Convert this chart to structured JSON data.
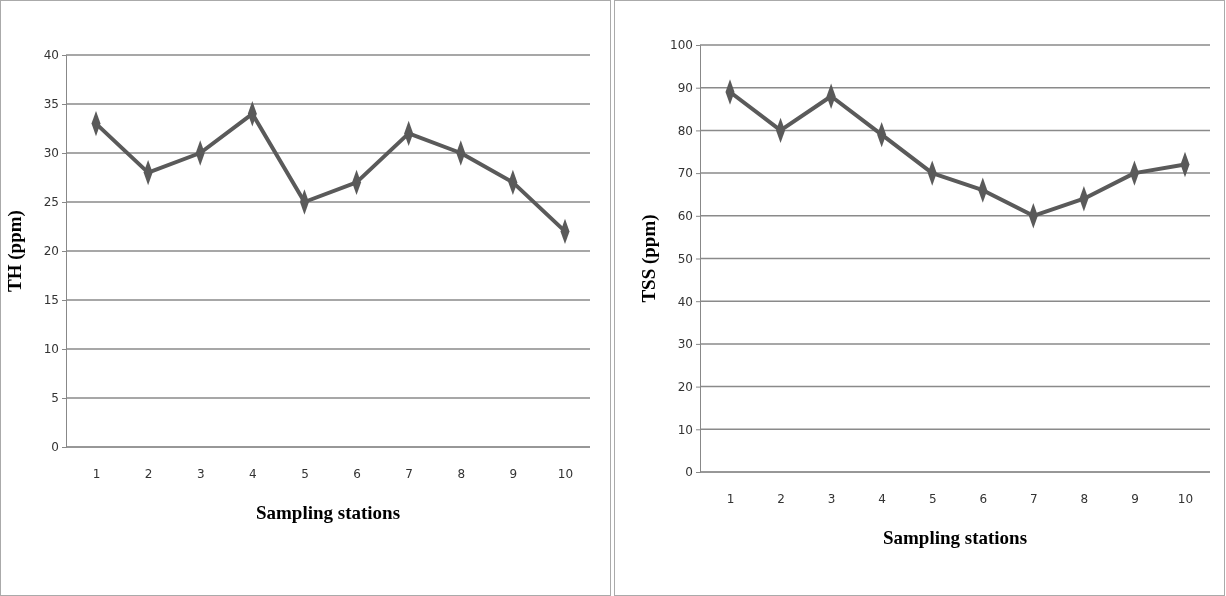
{
  "chart_data": [
    {
      "type": "line",
      "xlabel": "Sampling stations",
      "ylabel": "TH (ppm)",
      "categories": [
        "1",
        "2",
        "3",
        "4",
        "5",
        "6",
        "7",
        "8",
        "9",
        "10"
      ],
      "series": [
        {
          "color": "#5a5a5a",
          "values": [
            33,
            28,
            30,
            34,
            25,
            27,
            32,
            30,
            27,
            22
          ]
        }
      ],
      "ylim": [
        0,
        40
      ],
      "yticks": [
        0,
        5,
        10,
        15,
        20,
        25,
        30,
        35,
        40
      ],
      "grid": "y",
      "marker": "diamond",
      "line_style": "solid"
    },
    {
      "type": "line",
      "xlabel": "Sampling stations",
      "ylabel": "TSS (ppm)",
      "categories": [
        "1",
        "2",
        "3",
        "4",
        "5",
        "6",
        "7",
        "8",
        "9",
        "10"
      ],
      "series": [
        {
          "color": "#5a5a5a",
          "values": [
            89,
            80,
            88,
            79,
            70,
            66,
            60,
            64,
            70,
            72
          ]
        }
      ],
      "ylim": [
        0,
        100
      ],
      "yticks": [
        0,
        10,
        20,
        30,
        40,
        50,
        60,
        70,
        80,
        90,
        100
      ],
      "grid": "y",
      "marker": "diamond",
      "line_style": "solid"
    }
  ]
}
